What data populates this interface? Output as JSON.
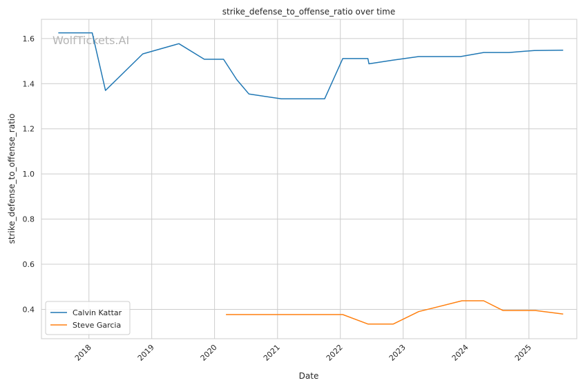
{
  "chart_data": {
    "type": "line",
    "title": "strike_defense_to_offense_ratio over time",
    "xlabel": "Date",
    "ylabel": "strike_defense_to_offense_ratio",
    "watermark": "WolfTickets.AI",
    "x_ticks": [
      "2018",
      "2019",
      "2020",
      "2021",
      "2022",
      "2023",
      "2024",
      "2025"
    ],
    "y_ticks": [
      "0.4",
      "0.6",
      "0.8",
      "1.0",
      "1.2",
      "1.4",
      "1.6"
    ],
    "ylim": [
      0.27,
      1.685
    ],
    "xlim": [
      "2017-03-31",
      "2025-10-06"
    ],
    "grid": true,
    "legend_position": "lower-left",
    "series": [
      {
        "name": "Calvin Kattar",
        "color": "#1f77b4",
        "points": [
          [
            "2017-07-07",
            1.625
          ],
          [
            "2018-01-20",
            1.625
          ],
          [
            "2018-04-07",
            1.37
          ],
          [
            "2018-11-10",
            1.532
          ],
          [
            "2019-06-08",
            1.577
          ],
          [
            "2019-11-02",
            1.508
          ],
          [
            "2020-02-22",
            1.508
          ],
          [
            "2020-05-09",
            1.418
          ],
          [
            "2020-07-19",
            1.354
          ],
          [
            "2021-01-23",
            1.333
          ],
          [
            "2021-10-02",
            1.333
          ],
          [
            "2022-01-15",
            1.511
          ],
          [
            "2022-06-10",
            1.511
          ],
          [
            "2022-06-16",
            1.488
          ],
          [
            "2022-11-01",
            1.504
          ],
          [
            "2023-04-01",
            1.52
          ],
          [
            "2023-12-01",
            1.52
          ],
          [
            "2024-04-13",
            1.538
          ],
          [
            "2024-09-07",
            1.538
          ],
          [
            "2025-02-01",
            1.547
          ],
          [
            "2025-07-19",
            1.548
          ]
        ]
      },
      {
        "name": "Steve Garcia",
        "color": "#ff7f0e",
        "points": [
          [
            "2020-03-07",
            0.377
          ],
          [
            "2022-01-15",
            0.377
          ],
          [
            "2022-06-10",
            0.335
          ],
          [
            "2022-11-05",
            0.335
          ],
          [
            "2023-04-01",
            0.39
          ],
          [
            "2023-12-09",
            0.438
          ],
          [
            "2024-04-13",
            0.438
          ],
          [
            "2024-08-03",
            0.395
          ],
          [
            "2025-02-08",
            0.395
          ],
          [
            "2025-07-19",
            0.379
          ]
        ]
      }
    ]
  }
}
